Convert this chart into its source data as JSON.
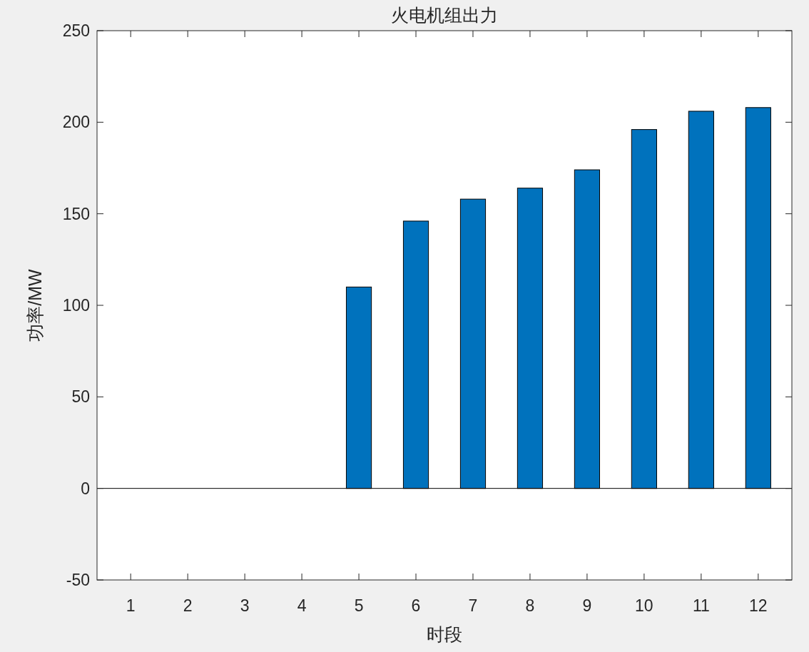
{
  "chart_data": {
    "type": "bar",
    "title": "火电机组出力",
    "xlabel": "时段",
    "ylabel": "功率/MW",
    "categories": [
      "1",
      "2",
      "3",
      "4",
      "5",
      "6",
      "7",
      "8",
      "9",
      "10",
      "11",
      "12"
    ],
    "values": [
      0,
      0,
      0,
      0,
      110,
      146,
      158,
      164,
      174,
      196,
      206,
      208
    ],
    "color": "#0072bd",
    "ylim": [
      -50,
      250
    ],
    "yticks": [
      -50,
      0,
      50,
      100,
      150,
      200,
      250
    ],
    "ref_lines": [
      {
        "axis": "y",
        "value": 0,
        "color": "#000000"
      }
    ]
  }
}
